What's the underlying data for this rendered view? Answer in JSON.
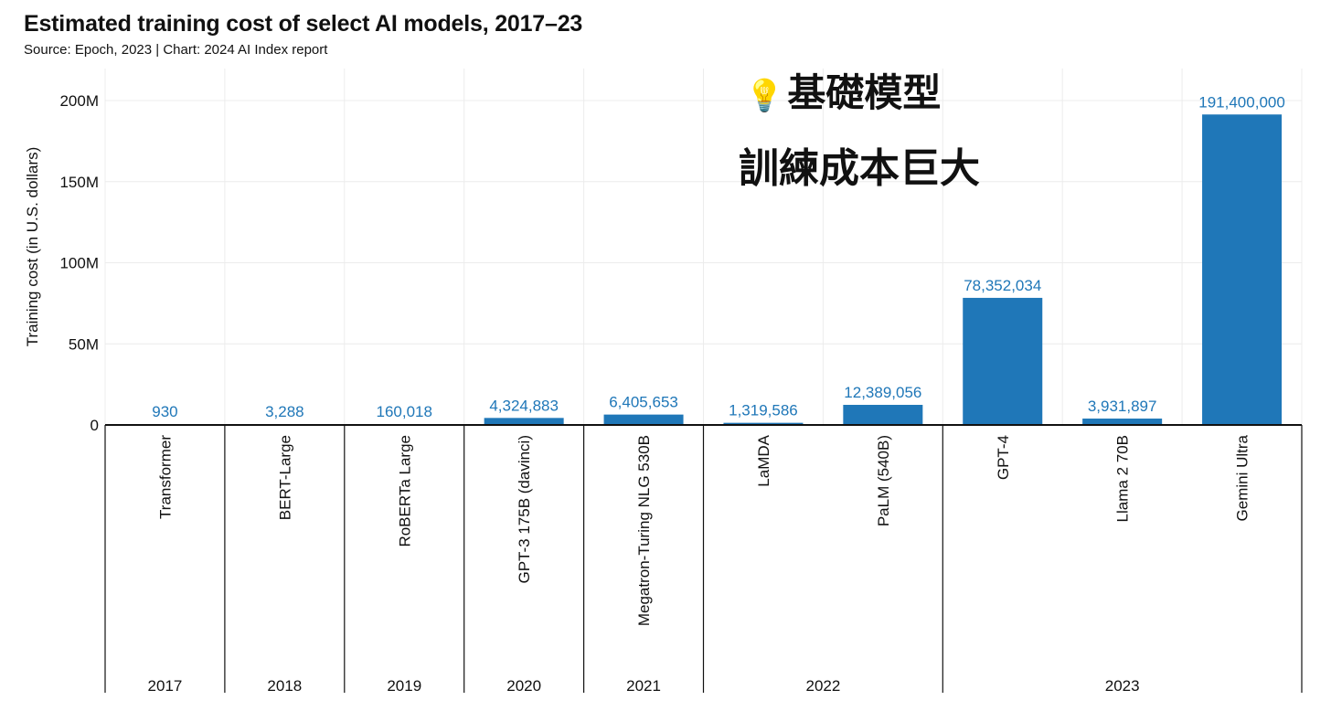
{
  "title": "Estimated training cost of select AI models, 2017–23",
  "subtitle": "Source: Epoch, 2023 | Chart: 2024 AI Index report",
  "overlay": {
    "icon": "lightbulb-icon",
    "line1": "基礎模型",
    "line2": "訓練成本巨大"
  },
  "chart_data": {
    "type": "bar",
    "ylabel": "Training cost (in U.S. dollars)",
    "xlabel": "",
    "ylim": [
      0,
      220000000
    ],
    "yticks": [
      {
        "value": 0,
        "label": "0"
      },
      {
        "value": 50000000,
        "label": "50M"
      },
      {
        "value": 100000000,
        "label": "100M"
      },
      {
        "value": 150000000,
        "label": "150M"
      },
      {
        "value": 200000000,
        "label": "200M"
      }
    ],
    "grid": true,
    "bar_color": "#1f77b8",
    "label_color": "#1f77b8",
    "categories": [
      "Transformer",
      "BERT-Large",
      "RoBERTa Large",
      "GPT-3 175B (davinci)",
      "Megatron-Turing NLG 530B",
      "LaMDA",
      "PaLM (540B)",
      "GPT-4",
      "Llama 2 70B",
      "Gemini Ultra"
    ],
    "values": [
      930,
      3288,
      160018,
      4324883,
      6405653,
      1319586,
      12389056,
      78352034,
      3931897,
      191400000
    ],
    "value_labels": [
      "930",
      "3,288",
      "160,018",
      "4,324,883",
      "6,405,653",
      "1,319,586",
      "12,389,056",
      "78,352,034",
      "3,931,897",
      "191,400,000"
    ],
    "year_groups": [
      {
        "year": "2017",
        "count": 1
      },
      {
        "year": "2018",
        "count": 1
      },
      {
        "year": "2019",
        "count": 1
      },
      {
        "year": "2020",
        "count": 1
      },
      {
        "year": "2021",
        "count": 1
      },
      {
        "year": "2022",
        "count": 2
      },
      {
        "year": "2023",
        "count": 3
      }
    ]
  }
}
